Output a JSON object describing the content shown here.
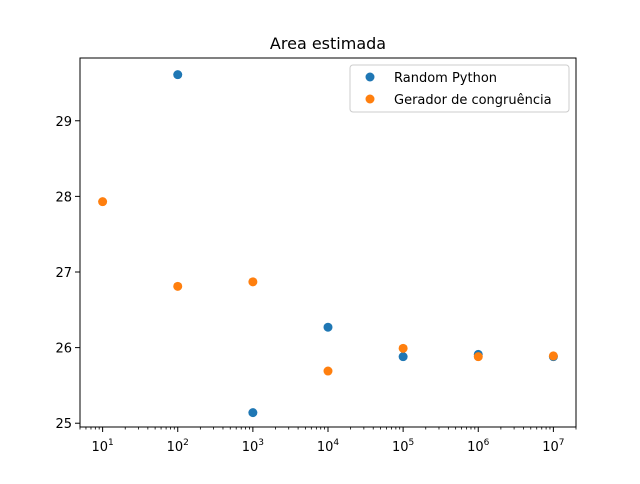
{
  "chart_data": {
    "type": "scatter",
    "title": "Area estimada",
    "xlabel": "",
    "ylabel": "",
    "xscale": "log",
    "xlim": [
      5,
      20000000
    ],
    "ylim": [
      24.95,
      29.83
    ],
    "x_ticks": [
      10,
      100,
      1000,
      10000,
      100000,
      1000000,
      10000000
    ],
    "x_tick_labels": [
      {
        "base": "10",
        "exp": "1"
      },
      {
        "base": "10",
        "exp": "2"
      },
      {
        "base": "10",
        "exp": "3"
      },
      {
        "base": "10",
        "exp": "4"
      },
      {
        "base": "10",
        "exp": "5"
      },
      {
        "base": "10",
        "exp": "6"
      },
      {
        "base": "10",
        "exp": "7"
      }
    ],
    "y_ticks": [
      25,
      26,
      27,
      28,
      29
    ],
    "y_tick_labels": [
      "25",
      "26",
      "27",
      "28",
      "29"
    ],
    "grid": false,
    "legend_position": "top-right",
    "series": [
      {
        "name": "Random Python",
        "color": "#1f77b4",
        "points": [
          {
            "x": 100,
            "y": 29.61
          },
          {
            "x": 1000,
            "y": 25.14
          },
          {
            "x": 10000,
            "y": 26.27
          },
          {
            "x": 100000,
            "y": 25.88
          },
          {
            "x": 1000000,
            "y": 25.91
          },
          {
            "x": 10000000,
            "y": 25.88
          }
        ]
      },
      {
        "name": "Gerador de congruência",
        "color": "#ff7f0e",
        "points": [
          {
            "x": 10,
            "y": 27.93
          },
          {
            "x": 100,
            "y": 26.81
          },
          {
            "x": 1000,
            "y": 26.87
          },
          {
            "x": 10000,
            "y": 25.69
          },
          {
            "x": 100000,
            "y": 25.99
          },
          {
            "x": 1000000,
            "y": 25.88
          },
          {
            "x": 10000000,
            "y": 25.89
          }
        ]
      }
    ]
  }
}
